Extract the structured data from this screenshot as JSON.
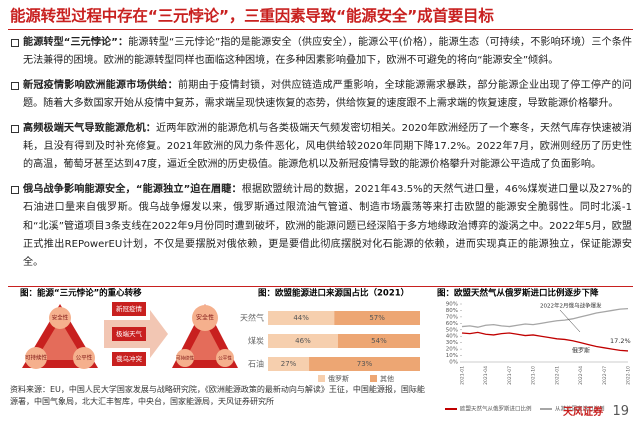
{
  "header": {
    "title": "能源转型过程中存在“三元悖论”，三重因素导致“能源安全”成首要目标"
  },
  "bullets": [
    {
      "lead": "能源转型“三元悖论”：",
      "text": "能源转型“三元悖论”指的是能源安全（供应安全），能源公平(价格），能源生态（可持续，不影响环境）三个条件无法兼得的困境。欧洲的能源转型同样也面临这种困境，在多种因素影响叠加下，欧洲不可避免的将向“能源安全”倾斜。"
    },
    {
      "lead": "新冠疫情影响欧洲能源市场供给：",
      "text": "前期由于疫情封锁，对供应链造成严重影响，全球能源需求暴跌，部分能源企业出现了停工停产的问题。随着大多数国家开始从疫情中复苏，需求端呈现快速恢复的态势，供给恢复的速度跟不上需求端的恢复速度，导致能源价格攀升。"
    },
    {
      "lead": "高频极端天气导致能源危机：",
      "text": "近两年欧洲的能源危机与各类极端天气频发密切相关。2020年欧洲经历了一个寒冬，天然气库存快速被消耗，且没有得到及时补充修复。2021年欧洲的风力条件恶化，风电供给较2020年同期下降17.2%。2022年7月，欧洲则经历了历史性的高温，葡萄牙甚至达到47度，逼近全欧洲的历史极值。能源危机以及新冠疫情导致的能源价格攀升对能源公平造成了负面影响。"
    },
    {
      "lead": "俄乌战争影响能源安全，“能源独立”迫在眉睫：",
      "text": "根据欧盟统计局的数据，2021年43.5%的天然气进口量，46%煤炭进口量以及27%的石油进口量来自俄罗斯。俄乌战争爆发以来，俄罗斯通过限流油气管道、制造市场震荡等来打击欧盟的能源安全脆弱性。同时北溪-1和“北溪”管道项目3条支线在2022年9月份同时遭到破坏，欧洲的能源问题已经深陷于多方地缘政治博弈的漩涡之中。2022年5月，欧盟正式推出REPowerEU计划，不仅是要摆脱对俄依赖，更是要借此彻底摆脱对化石能源的依赖，进而实现真正的能源独立，保证能源安全。"
    }
  ],
  "diagram": {
    "caption": "图：能源“三元悖论”的重心转移",
    "left": [
      "安全性",
      "可持续性",
      "公平性"
    ],
    "factors": [
      "新冠疫情",
      "极端天气",
      "俄乌冲突"
    ],
    "right": [
      "安全性",
      "可持续性",
      "公平性"
    ]
  },
  "chart_data": [
    {
      "type": "bar",
      "title": "图：欧盟能源进口来源国占比（2021）",
      "orientation": "horizontal",
      "stacked": true,
      "categories": [
        "天然气",
        "煤炭",
        "石油"
      ],
      "series": [
        {
          "name": "俄罗斯",
          "color": "#f6cfae",
          "values": [
            44,
            46,
            27
          ],
          "value_labels": [
            "44%",
            "46%",
            "27%"
          ]
        },
        {
          "name": "其他",
          "color": "#eda673",
          "values": [
            57,
            54,
            73
          ],
          "value_labels": [
            "57%",
            "54%",
            "73%"
          ]
        }
      ],
      "legend": "bottom"
    },
    {
      "type": "line",
      "title": "图：欧盟天然气从俄罗斯进口比例逐步下降",
      "x": [
        "2021-01",
        "2021-02",
        "2021-03",
        "2021-04",
        "2021-05",
        "2021-06",
        "2021-07",
        "2021-08",
        "2021-09",
        "2021-10",
        "2021-11",
        "2021-12",
        "2022-01",
        "2022-02",
        "2022-03",
        "2022-04",
        "2022-05",
        "2022-06",
        "2022-07",
        "2022-08",
        "2022-09",
        "2022-10"
      ],
      "series": [
        {
          "name": "欧盟天然气从俄罗斯进口比例",
          "color": "#c00000",
          "values": [
            45,
            44,
            46,
            43,
            42,
            44,
            45,
            43,
            41,
            42,
            40,
            38,
            36,
            35,
            33,
            30,
            27,
            24,
            22,
            20,
            18,
            17.2
          ]
        },
        {
          "name": "从其他国家进口比例",
          "color": "#a6a6a6",
          "values": [
            55,
            56,
            54,
            57,
            58,
            56,
            55,
            57,
            59,
            58,
            60,
            62,
            64,
            65,
            67,
            70,
            73,
            76,
            78,
            80,
            82,
            82.8
          ]
        }
      ],
      "ylim": [
        0,
        90
      ],
      "yticks": [
        {
          "value": 0,
          "label": "0%"
        },
        {
          "value": 10,
          "label": "10%"
        },
        {
          "value": 20,
          "label": "20%"
        },
        {
          "value": 30,
          "label": "30%"
        },
        {
          "value": 40,
          "label": "40%"
        },
        {
          "value": 50,
          "label": "50%"
        },
        {
          "value": 60,
          "label": "60%"
        },
        {
          "value": 70,
          "label": "70%"
        },
        {
          "value": 80,
          "label": "80%"
        },
        {
          "value": 90,
          "label": "90%"
        }
      ],
      "annotations": [
        "2022年2月俄乌战争爆发",
        "俄罗斯",
        "17.2%"
      ],
      "legend": "bottom"
    }
  ],
  "footer": {
    "source": "资料来源：EU，中国人民大学国家发展与战略研究院，《欧洲能源政策的最新动向与解读》王征，中国能源报，国际能源署，中国气象局，北大汇丰智库，中央台，国家能源局，天风证券研究所",
    "logo": "天风证券",
    "page": "19"
  }
}
